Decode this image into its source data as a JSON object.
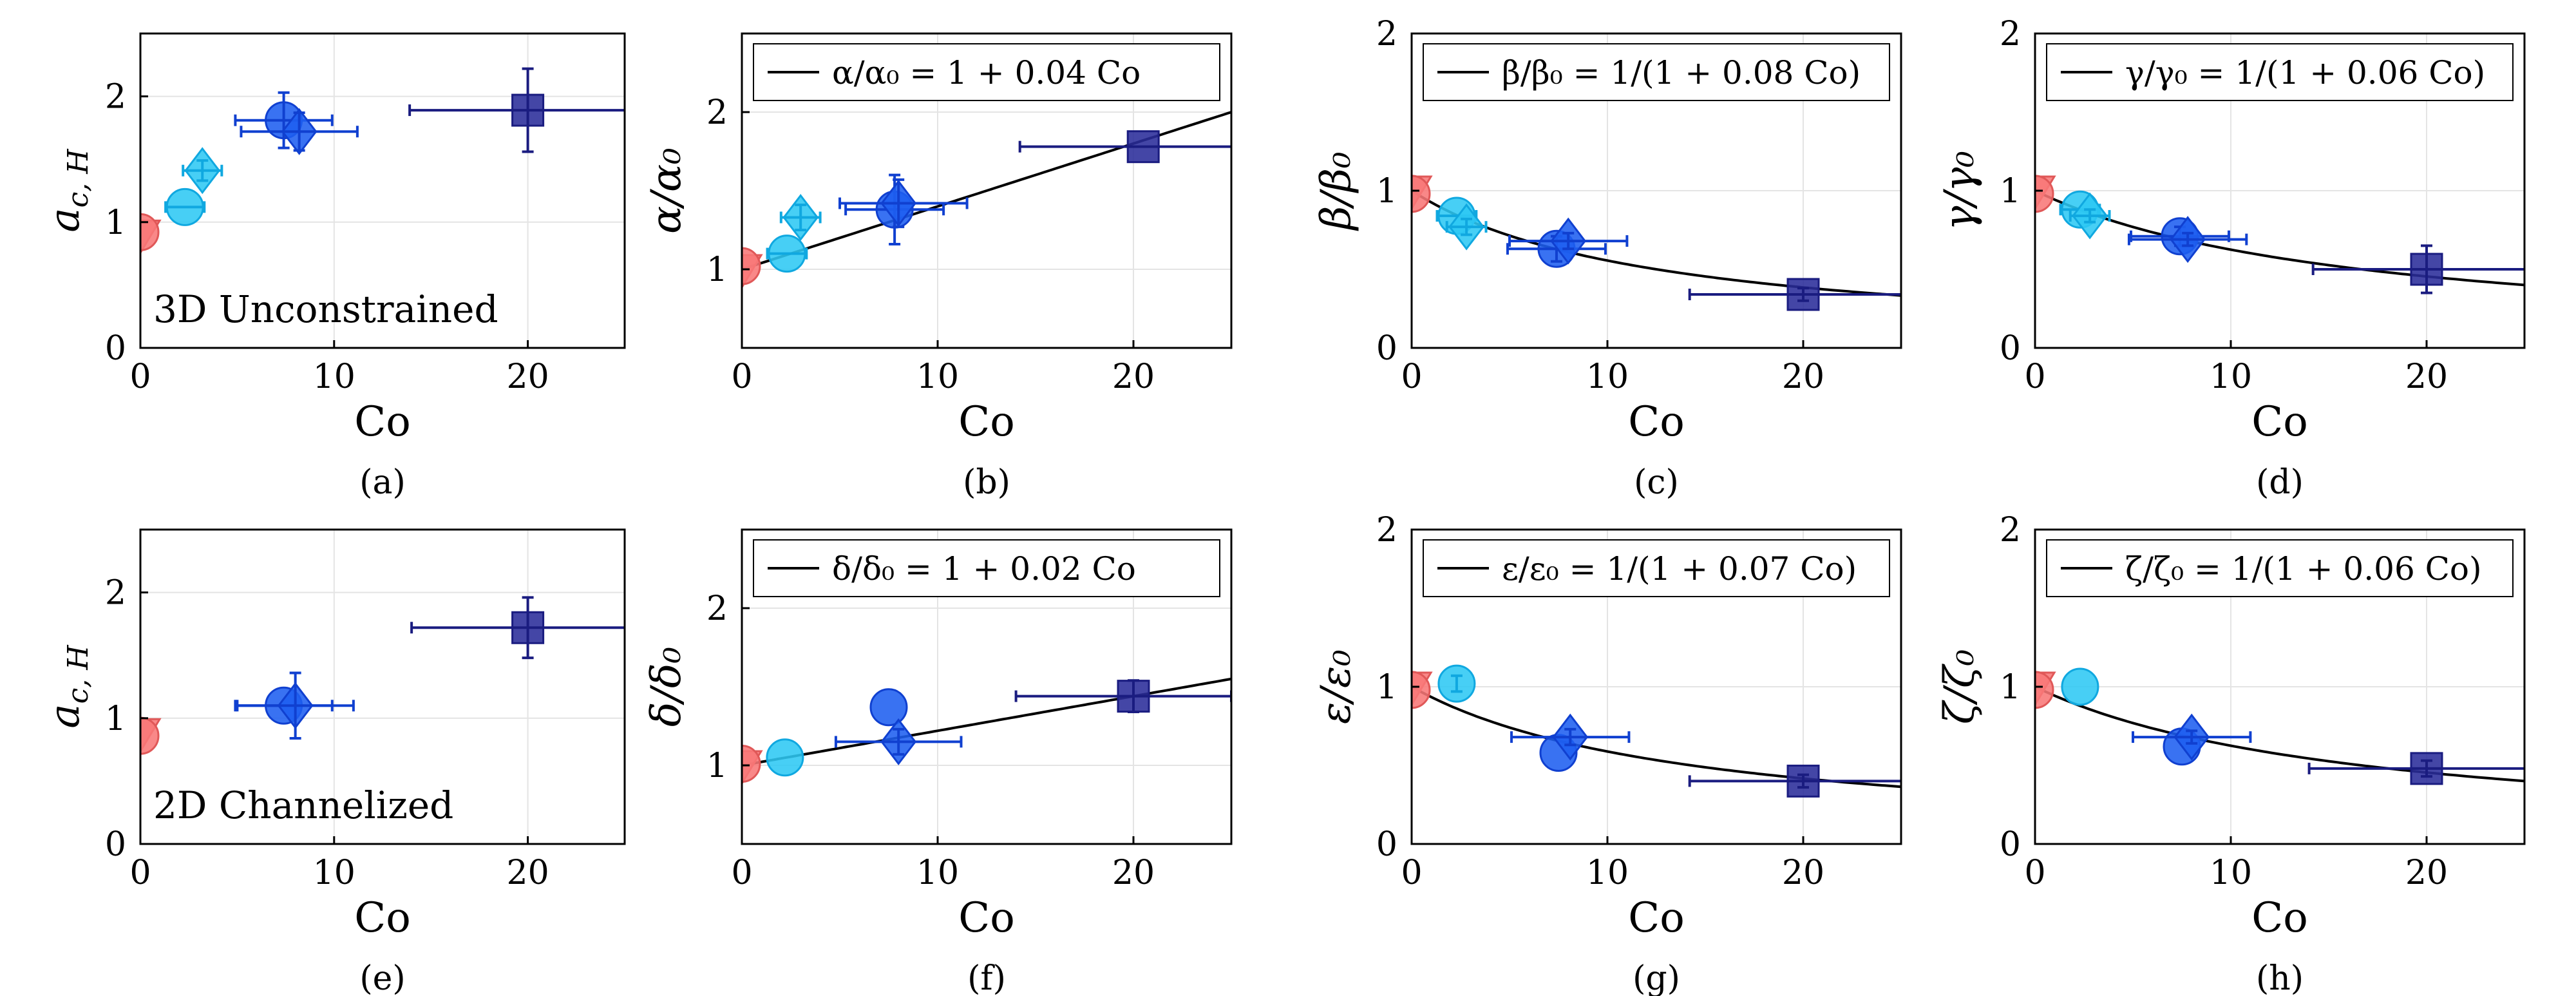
{
  "figure": {
    "background": "#ffffff"
  },
  "colors": {
    "pink": "#f87878",
    "lightblue": "#2ec8f4",
    "blue": "#1e5ef0",
    "navy": "#2a2c9a",
    "errPink": "#e05858",
    "errLight": "#10a8e0",
    "errBlue": "#1040d0",
    "errNavy": "#1a1c80"
  },
  "chart_data": [
    {
      "id": "a",
      "type": "scatter",
      "caption": "(a)",
      "ylabel": "a_{c, H}",
      "xlabel": "Co",
      "xlim": [
        0,
        25
      ],
      "ylim": [
        0,
        2.5
      ],
      "xticks": [
        "0",
        "10",
        "20"
      ],
      "yticks": [
        "0",
        "1",
        "2"
      ],
      "annotation": "3D Unconstrained",
      "points": [
        {
          "shape": "triangle-down",
          "color": "pink",
          "x": 0,
          "y": 0.9,
          "xerr": [
            0,
            0
          ],
          "yerr": [
            0,
            0
          ]
        },
        {
          "shape": "circle",
          "color": "pink",
          "x": 0,
          "y": 0.92,
          "xerr": [
            0,
            0
          ],
          "yerr": [
            0,
            0
          ]
        },
        {
          "shape": "circle",
          "color": "lightblue",
          "x": 2.3,
          "y": 1.12,
          "xerr": [
            1.0,
            1.0
          ],
          "yerr": [
            0,
            0
          ]
        },
        {
          "shape": "diamond",
          "color": "lightblue",
          "x": 3.2,
          "y": 1.41,
          "xerr": [
            1.0,
            1.0
          ],
          "yerr": [
            0.08,
            0.08
          ]
        },
        {
          "shape": "circle",
          "color": "blue",
          "x": 7.4,
          "y": 1.81,
          "xerr": [
            2.5,
            2.5
          ],
          "yerr": [
            0.22,
            0.22
          ]
        },
        {
          "shape": "diamond",
          "color": "blue",
          "x": 8.2,
          "y": 1.72,
          "xerr": [
            3.0,
            3.0
          ],
          "yerr": [
            0.15,
            0.15
          ]
        },
        {
          "shape": "square",
          "color": "navy",
          "x": 20,
          "y": 1.89,
          "xerr": [
            6.1,
            7.0
          ],
          "yerr": [
            0.33,
            0.33
          ]
        }
      ]
    },
    {
      "id": "b",
      "type": "scatter",
      "caption": "(b)",
      "ylabel": "α/α₀",
      "xlabel": "Co",
      "xlim": [
        0,
        25
      ],
      "ylim": [
        0.5,
        2.5
      ],
      "xticks": [
        "0",
        "10",
        "20"
      ],
      "yticks": [
        "1",
        "2"
      ],
      "legend": "α/α₀ = 1 + 0.04 Co",
      "fit": {
        "kind": "linear",
        "a": 1,
        "b": 0.04,
        "xrange": [
          0,
          25
        ]
      },
      "points": [
        {
          "shape": "triangle-down",
          "color": "pink",
          "x": 0,
          "y": 1.0,
          "xerr": [
            0,
            0
          ],
          "yerr": [
            0,
            0
          ]
        },
        {
          "shape": "circle",
          "color": "pink",
          "x": 0,
          "y": 1.02,
          "xerr": [
            0,
            0
          ],
          "yerr": [
            0,
            0
          ]
        },
        {
          "shape": "circle",
          "color": "lightblue",
          "x": 2.3,
          "y": 1.1,
          "xerr": [
            1.0,
            1.0
          ],
          "yerr": [
            0,
            0
          ]
        },
        {
          "shape": "diamond",
          "color": "lightblue",
          "x": 3.0,
          "y": 1.33,
          "xerr": [
            1.0,
            1.0
          ],
          "yerr": [
            0.08,
            0.08
          ]
        },
        {
          "shape": "circle",
          "color": "blue",
          "x": 7.8,
          "y": 1.38,
          "xerr": [
            2.5,
            2.5
          ],
          "yerr": [
            0.22,
            0.22
          ]
        },
        {
          "shape": "diamond",
          "color": "blue",
          "x": 8.0,
          "y": 1.42,
          "xerr": [
            3.0,
            3.5
          ],
          "yerr": [
            0.15,
            0.15
          ]
        },
        {
          "shape": "square",
          "color": "navy",
          "x": 20.5,
          "y": 1.78,
          "xerr": [
            6.3,
            5.5
          ],
          "yerr": [
            0,
            0
          ]
        }
      ]
    },
    {
      "id": "c",
      "type": "scatter",
      "caption": "(c)",
      "ylabel": "β/β₀",
      "xlabel": "Co",
      "xlim": [
        0,
        25
      ],
      "ylim": [
        0,
        2
      ],
      "xticks": [
        "0",
        "10",
        "20"
      ],
      "yticks": [
        "0",
        "1",
        "2"
      ],
      "legend": "β/β₀ = 1/(1 + 0.08 Co)",
      "fit": {
        "kind": "inverse",
        "a": 1,
        "b": 0.08,
        "xrange": [
          0,
          25
        ]
      },
      "points": [
        {
          "shape": "triangle-down",
          "color": "pink",
          "x": 0,
          "y": 1.0,
          "xerr": [
            0,
            0
          ],
          "yerr": [
            0,
            0
          ]
        },
        {
          "shape": "circle",
          "color": "pink",
          "x": 0,
          "y": 0.98,
          "xerr": [
            0,
            0
          ],
          "yerr": [
            0,
            0
          ]
        },
        {
          "shape": "circle",
          "color": "lightblue",
          "x": 2.3,
          "y": 0.84,
          "xerr": [
            1.0,
            1.0
          ],
          "yerr": [
            0,
            0
          ]
        },
        {
          "shape": "diamond",
          "color": "lightblue",
          "x": 2.8,
          "y": 0.77,
          "xerr": [
            1.0,
            1.0
          ],
          "yerr": [
            0.05,
            0.05
          ]
        },
        {
          "shape": "circle",
          "color": "blue",
          "x": 7.4,
          "y": 0.63,
          "xerr": [
            2.5,
            2.5
          ],
          "yerr": [
            0.08,
            0.08
          ]
        },
        {
          "shape": "diamond",
          "color": "blue",
          "x": 8.0,
          "y": 0.68,
          "xerr": [
            3.0,
            3.0
          ],
          "yerr": [
            0.05,
            0.05
          ]
        },
        {
          "shape": "square",
          "color": "navy",
          "x": 20,
          "y": 0.34,
          "xerr": [
            5.8,
            5.8
          ],
          "yerr": [
            0.04,
            0.04
          ]
        }
      ]
    },
    {
      "id": "d",
      "type": "scatter",
      "caption": "(d)",
      "ylabel": "γ/γ₀",
      "xlabel": "Co",
      "xlim": [
        0,
        25
      ],
      "ylim": [
        0,
        2
      ],
      "xticks": [
        "0",
        "10",
        "20"
      ],
      "yticks": [
        "0",
        "1",
        "2"
      ],
      "legend": "γ/γ₀ = 1/(1 + 0.06 Co)",
      "fit": {
        "kind": "inverse",
        "a": 1,
        "b": 0.06,
        "xrange": [
          0,
          25
        ]
      },
      "points": [
        {
          "shape": "triangle-down",
          "color": "pink",
          "x": 0,
          "y": 1.0,
          "xerr": [
            0,
            0
          ],
          "yerr": [
            0,
            0
          ]
        },
        {
          "shape": "circle",
          "color": "pink",
          "x": 0,
          "y": 0.98,
          "xerr": [
            0,
            0
          ],
          "yerr": [
            0,
            0
          ]
        },
        {
          "shape": "circle",
          "color": "lightblue",
          "x": 2.3,
          "y": 0.88,
          "xerr": [
            1.0,
            1.0
          ],
          "yerr": [
            0,
            0
          ]
        },
        {
          "shape": "diamond",
          "color": "lightblue",
          "x": 2.8,
          "y": 0.84,
          "xerr": [
            1.0,
            1.0
          ],
          "yerr": [
            0.04,
            0.04
          ]
        },
        {
          "shape": "circle",
          "color": "blue",
          "x": 7.4,
          "y": 0.71,
          "xerr": [
            2.5,
            2.5
          ],
          "yerr": [
            0.06,
            0.06
          ]
        },
        {
          "shape": "diamond",
          "color": "blue",
          "x": 7.8,
          "y": 0.69,
          "xerr": [
            3.0,
            3.0
          ],
          "yerr": [
            0.04,
            0.04
          ]
        },
        {
          "shape": "square",
          "color": "navy",
          "x": 20,
          "y": 0.5,
          "xerr": [
            5.8,
            6.5
          ],
          "yerr": [
            0.15,
            0.15
          ]
        }
      ]
    },
    {
      "id": "e",
      "type": "scatter",
      "caption": "(e)",
      "ylabel": "a_{c, H}",
      "xlabel": "Co",
      "xlim": [
        0,
        25
      ],
      "ylim": [
        0,
        2.5
      ],
      "xticks": [
        "0",
        "10",
        "20"
      ],
      "yticks": [
        "0",
        "1",
        "2"
      ],
      "annotation": "2D Channelized",
      "points": [
        {
          "shape": "triangle-down",
          "color": "pink",
          "x": 0,
          "y": 0.88,
          "xerr": [
            0,
            0
          ],
          "yerr": [
            0,
            0
          ]
        },
        {
          "shape": "circle",
          "color": "pink",
          "x": 0,
          "y": 0.86,
          "xerr": [
            0,
            0
          ],
          "yerr": [
            0,
            0
          ]
        },
        {
          "shape": "circle",
          "color": "blue",
          "x": 7.4,
          "y": 1.1,
          "xerr": [
            2.5,
            2.5
          ],
          "yerr": [
            0,
            0
          ]
        },
        {
          "shape": "diamond",
          "color": "blue",
          "x": 8.0,
          "y": 1.1,
          "xerr": [
            3.0,
            3.0
          ],
          "yerr": [
            0.26,
            0.26
          ]
        },
        {
          "shape": "square",
          "color": "navy",
          "x": 20,
          "y": 1.72,
          "xerr": [
            6.0,
            7.0
          ],
          "yerr": [
            0.24,
            0.24
          ]
        }
      ]
    },
    {
      "id": "f",
      "type": "scatter",
      "caption": "(f)",
      "ylabel": "δ/δ₀",
      "xlabel": "Co",
      "xlim": [
        0,
        25
      ],
      "ylim": [
        0.5,
        2.5
      ],
      "xticks": [
        "0",
        "10",
        "20"
      ],
      "yticks": [
        "1",
        "2"
      ],
      "legend": "δ/δ₀  = 1 + 0.02 Co",
      "fit": {
        "kind": "linear",
        "a": 1,
        "b": 0.022,
        "xrange": [
          0,
          25
        ]
      },
      "points": [
        {
          "shape": "triangle-down",
          "color": "pink",
          "x": 0,
          "y": 1.0,
          "xerr": [
            0,
            0
          ],
          "yerr": [
            0,
            0
          ]
        },
        {
          "shape": "circle",
          "color": "pink",
          "x": 0,
          "y": 1.01,
          "xerr": [
            0,
            0
          ],
          "yerr": [
            0,
            0
          ]
        },
        {
          "shape": "circle",
          "color": "lightblue",
          "x": 2.2,
          "y": 1.05,
          "xerr": [
            0,
            0
          ],
          "yerr": [
            0,
            0
          ]
        },
        {
          "shape": "circle",
          "color": "blue",
          "x": 7.5,
          "y": 1.37,
          "xerr": [
            0,
            0
          ],
          "yerr": [
            0,
            0
          ]
        },
        {
          "shape": "diamond",
          "color": "blue",
          "x": 8.0,
          "y": 1.15,
          "xerr": [
            3.2,
            3.2
          ],
          "yerr": [
            0.08,
            0.08
          ]
        },
        {
          "shape": "square",
          "color": "navy",
          "x": 20,
          "y": 1.44,
          "xerr": [
            6.0,
            5.0
          ],
          "yerr": [
            0.1,
            0.1
          ]
        }
      ]
    },
    {
      "id": "g",
      "type": "scatter",
      "caption": "(g)",
      "ylabel": "ε/ε₀",
      "xlabel": "Co",
      "xlim": [
        0,
        25
      ],
      "ylim": [
        0,
        2
      ],
      "xticks": [
        "0",
        "10",
        "20"
      ],
      "yticks": [
        "0",
        "1",
        "2"
      ],
      "legend": "ε/ε₀  = 1/(1 + 0.07 Co)",
      "fit": {
        "kind": "inverse",
        "a": 1,
        "b": 0.07,
        "xrange": [
          0,
          25
        ]
      },
      "points": [
        {
          "shape": "triangle-down",
          "color": "pink",
          "x": 0,
          "y": 1.0,
          "xerr": [
            0,
            0
          ],
          "yerr": [
            0,
            0
          ]
        },
        {
          "shape": "circle",
          "color": "pink",
          "x": 0,
          "y": 0.98,
          "xerr": [
            0,
            0
          ],
          "yerr": [
            0,
            0
          ]
        },
        {
          "shape": "circle",
          "color": "lightblue",
          "x": 2.3,
          "y": 1.02,
          "xerr": [
            0,
            0
          ],
          "yerr": [
            0.05,
            0.05
          ]
        },
        {
          "shape": "circle",
          "color": "blue",
          "x": 7.5,
          "y": 0.58,
          "xerr": [
            0,
            0
          ],
          "yerr": [
            0,
            0
          ]
        },
        {
          "shape": "diamond",
          "color": "blue",
          "x": 8.1,
          "y": 0.68,
          "xerr": [
            3.0,
            3.0
          ],
          "yerr": [
            0.05,
            0.05
          ]
        },
        {
          "shape": "square",
          "color": "navy",
          "x": 20,
          "y": 0.4,
          "xerr": [
            5.8,
            6.0
          ],
          "yerr": [
            0.04,
            0.04
          ]
        }
      ]
    },
    {
      "id": "h",
      "type": "scatter",
      "caption": "(h)",
      "ylabel": "ζ/ζ₀",
      "xlabel": "Co",
      "xlim": [
        0,
        25
      ],
      "ylim": [
        0,
        2
      ],
      "xticks": [
        "0",
        "10",
        "20"
      ],
      "yticks": [
        "0",
        "1",
        "2"
      ],
      "legend": "ζ/ζ₀ = 1/(1 + 0.06 Co)",
      "fit": {
        "kind": "inverse",
        "a": 1,
        "b": 0.06,
        "xrange": [
          0,
          25
        ]
      },
      "points": [
        {
          "shape": "triangle-down",
          "color": "pink",
          "x": 0,
          "y": 1.0,
          "xerr": [
            0,
            0
          ],
          "yerr": [
            0,
            0
          ]
        },
        {
          "shape": "circle",
          "color": "pink",
          "x": 0,
          "y": 0.98,
          "xerr": [
            0,
            0
          ],
          "yerr": [
            0,
            0
          ]
        },
        {
          "shape": "circle",
          "color": "lightblue",
          "x": 2.3,
          "y": 1.0,
          "xerr": [
            0,
            0
          ],
          "yerr": [
            0,
            0
          ]
        },
        {
          "shape": "circle",
          "color": "blue",
          "x": 7.5,
          "y": 0.62,
          "xerr": [
            0,
            0
          ],
          "yerr": [
            0,
            0
          ]
        },
        {
          "shape": "diamond",
          "color": "blue",
          "x": 8.0,
          "y": 0.68,
          "xerr": [
            3.0,
            3.0
          ],
          "yerr": [
            0.04,
            0.04
          ]
        },
        {
          "shape": "square",
          "color": "navy",
          "x": 20,
          "y": 0.48,
          "xerr": [
            6.0,
            6.0
          ],
          "yerr": [
            0.05,
            0.05
          ]
        }
      ]
    }
  ]
}
